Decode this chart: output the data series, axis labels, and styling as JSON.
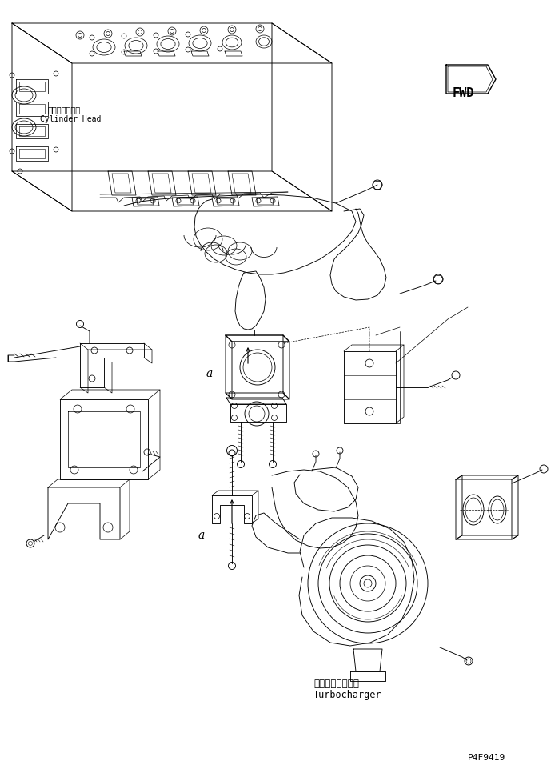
{
  "bg_color": "#ffffff",
  "line_color": "#000000",
  "fig_width": 6.99,
  "fig_height": 9.62,
  "dpi": 100,
  "label_cylinder_head_jp": "シリンダヘッド",
  "label_cylinder_head_en": "Cylinder Head",
  "label_turbocharger_jp": "ターボチャージャ",
  "label_turbocharger_en": "Turbocharger",
  "label_fwd": "FWD",
  "part_number": "P4F9419",
  "label_a": "a"
}
